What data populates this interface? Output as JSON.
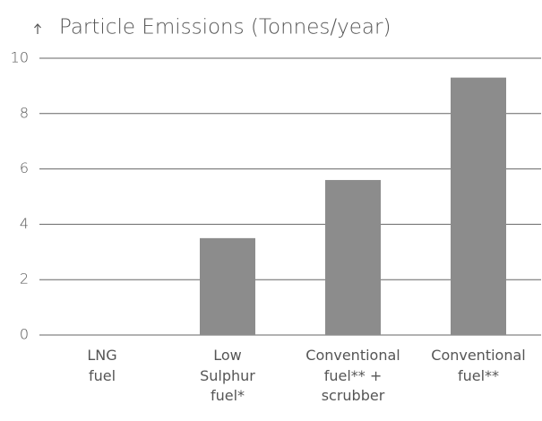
{
  "chart_data": {
    "type": "bar",
    "title": "Particle Emissions (Tonnes/year)",
    "categories": [
      "LNG\nfuel",
      "Low\nSulphur\nfuel*",
      "Conventional\nfuel** +\nscrubber",
      "Conventional\nfuel**"
    ],
    "values": [
      0,
      3.5,
      5.6,
      9.3
    ],
    "color": "#8c8c8c",
    "ylim": [
      0,
      10
    ],
    "yticks": [
      0,
      2,
      4,
      6,
      8,
      10
    ],
    "grid": true
  }
}
